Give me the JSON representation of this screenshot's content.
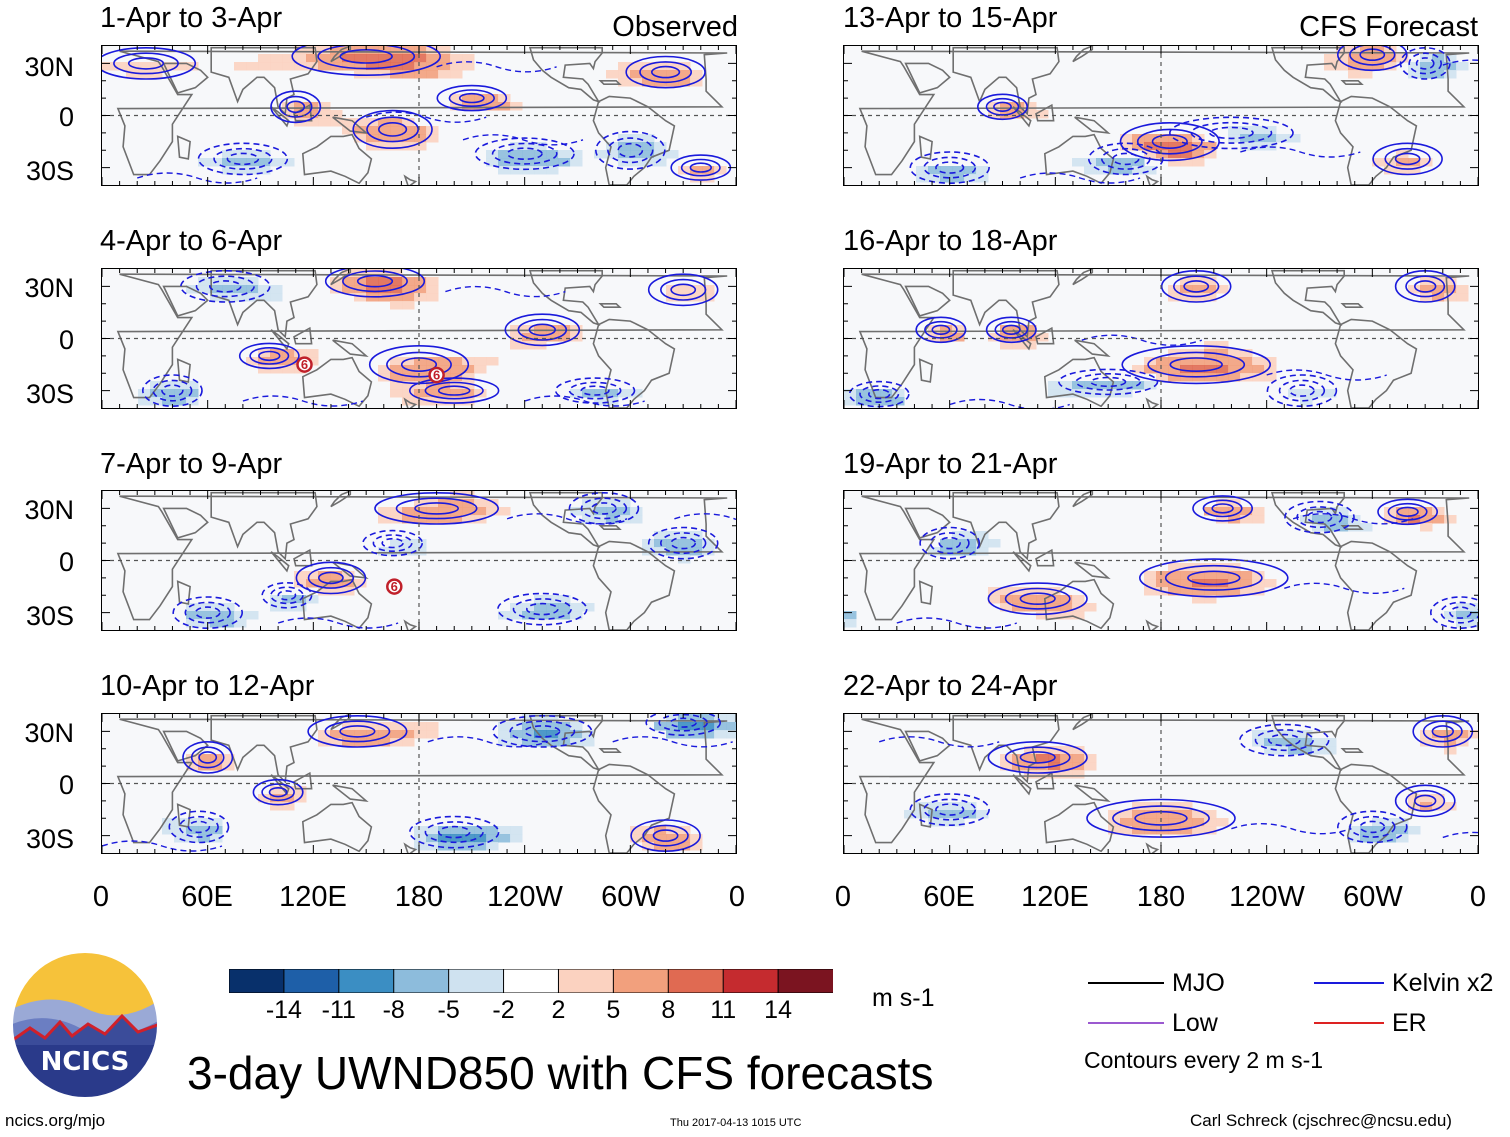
{
  "column_labels": {
    "left": "Observed",
    "right": "CFS Forecast"
  },
  "panels_left": [
    {
      "title": "1-Apr to 3-Apr",
      "tc_markers": []
    },
    {
      "title": "4-Apr to 6-Apr",
      "tc_markers": [
        {
          "lon": 115,
          "lat": -15
        },
        {
          "lon": 190,
          "lat": -21
        }
      ]
    },
    {
      "title": "7-Apr to 9-Apr",
      "tc_markers": [
        {
          "lon": 166,
          "lat": -15
        }
      ]
    },
    {
      "title": "10-Apr to 12-Apr",
      "tc_markers": []
    }
  ],
  "panels_right": [
    {
      "title": "13-Apr to 15-Apr"
    },
    {
      "title": "16-Apr to 18-Apr"
    },
    {
      "title": "19-Apr to 21-Apr"
    },
    {
      "title": "22-Apr to 24-Apr"
    }
  ],
  "tc_marker_symbol": "6",
  "lat_labels": [
    "30N",
    "0",
    "30S"
  ],
  "lon_labels": [
    "0",
    "60E",
    "120E",
    "180",
    "120W",
    "60W",
    "0"
  ],
  "colorbar": {
    "colors": [
      "#08306b",
      "#1e5fa8",
      "#3b8ec3",
      "#8dbcdc",
      "#cfe2f0",
      "#ffffff",
      "#fbd2c0",
      "#f2a07d",
      "#e06a52",
      "#c52b2f",
      "#7b1420"
    ],
    "ticks": [
      "-14",
      "-11",
      "-8",
      "-5",
      "-2",
      "2",
      "5",
      "8",
      "11",
      "14"
    ],
    "units": "m s-1"
  },
  "legend": {
    "items": [
      {
        "label": "MJO",
        "color": "#000000"
      },
      {
        "label": "Kelvin x2",
        "color": "#1a1adc"
      },
      {
        "label": "Low",
        "color": "#9b59d0"
      },
      {
        "label": "ER",
        "color": "#dd2222"
      }
    ],
    "note": "Contours every 2 m s-1"
  },
  "logo_text": "NCICS",
  "main_title": "3-day UWND850 with CFS forecasts",
  "footer": {
    "url": "ncics.org/mjo",
    "timestamp": "Thu 2017-04-13 1015 UTC",
    "author": "Carl Schreck (cjschrec@ncsu.edu)"
  }
}
